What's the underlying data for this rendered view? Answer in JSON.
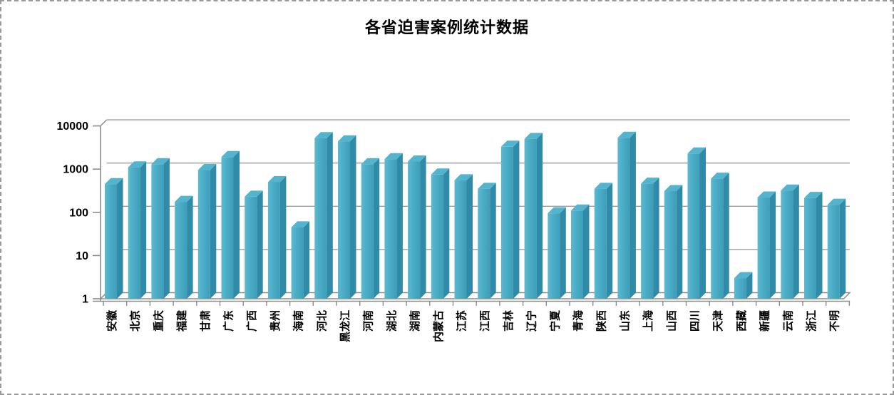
{
  "chart_data": {
    "type": "bar",
    "style": "3d-column",
    "title": "各省迫害案例统计数据",
    "categories": [
      "安徽",
      "北京",
      "重庆",
      "福建",
      "甘肃",
      "广东",
      "广西",
      "贵州",
      "海南",
      "河北",
      "黑龙江",
      "河南",
      "湖北",
      "湖南",
      "内蒙古",
      "江苏",
      "江西",
      "吉林",
      "辽宁",
      "宁夏",
      "青海",
      "陕西",
      "山东",
      "上海",
      "山西",
      "四川",
      "天津",
      "西藏",
      "新疆",
      "云南",
      "浙江",
      "不明"
    ],
    "values": [
      450,
      1100,
      1300,
      175,
      950,
      1900,
      230,
      500,
      45,
      5200,
      4400,
      1300,
      1700,
      1500,
      750,
      550,
      350,
      3300,
      5000,
      95,
      110,
      350,
      5300,
      460,
      310,
      2300,
      600,
      3,
      220,
      320,
      215,
      150
    ],
    "xlabel": "",
    "ylabel": "",
    "yscale": "log",
    "ylim": [
      1,
      10000
    ],
    "yticks": [
      1,
      10,
      100,
      1000,
      10000
    ],
    "ytick_labels": [
      "1",
      "10",
      "100",
      "1000",
      "10000"
    ],
    "grid": true,
    "legend": "none",
    "colors": {
      "bar_front": "#4BACC6",
      "bar_front_light": "#5CB9D1",
      "bar_front_dark": "#3E9EBA",
      "bar_top": "#54B3CD",
      "bar_side": "#2F8BA8",
      "gridline": "#9C9C9C",
      "axis": "#8C8C8C",
      "text": "#000000",
      "frame_border": "#999999",
      "background": "#FFFFFF"
    }
  }
}
